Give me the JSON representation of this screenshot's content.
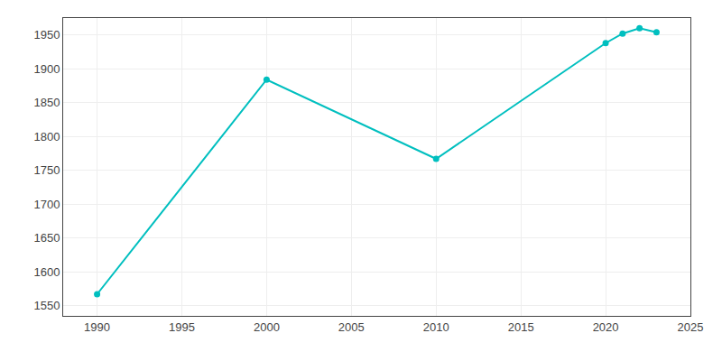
{
  "chart_data": {
    "type": "line",
    "x": [
      1990,
      2000,
      2010,
      2020,
      2021,
      2022,
      2023
    ],
    "values": [
      1567,
      1884,
      1767,
      1938,
      1952,
      1960,
      1954
    ],
    "color": "#00BFBF",
    "marker": "circle",
    "xlim": [
      1988,
      2025
    ],
    "ylim": [
      1535,
      1975
    ],
    "xticks": [
      1990,
      1995,
      2000,
      2005,
      2010,
      2015,
      2020,
      2025
    ],
    "yticks": [
      1550,
      1600,
      1650,
      1700,
      1750,
      1800,
      1850,
      1900,
      1950
    ],
    "grid": true
  }
}
